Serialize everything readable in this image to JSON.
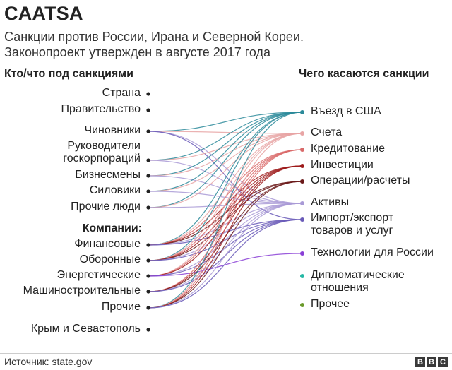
{
  "title": "CAATSA",
  "subtitle": [
    "Санкции против России, Ирана и Северной Кореи.",
    "Законопроект утвержден в августе 2017 года"
  ],
  "left_header": "Кто/что под санкциями",
  "right_header": "Чего касаются санкции",
  "left_nodes": [
    {
      "id": "strana",
      "label": "Страна",
      "color": "#222222"
    },
    {
      "id": "pravitelstvo",
      "label": "Правительство",
      "color": "#222222"
    },
    {
      "id": "chinovniki",
      "label": "Чиновники",
      "color": "#222222"
    },
    {
      "id": "rukovoditeli",
      "label": "Руководители\nгоскорпораций",
      "color": "#222222"
    },
    {
      "id": "biznesmeny",
      "label": "Бизнесмены",
      "color": "#222222"
    },
    {
      "id": "siloviki",
      "label": "Силовики",
      "color": "#222222"
    },
    {
      "id": "prochie_lyudi",
      "label": "Прочие люди",
      "color": "#222222"
    },
    {
      "id": "kompanii",
      "label": "Компании:",
      "color": "#222222"
    },
    {
      "id": "finansovye",
      "label": "Финансовые",
      "color": "#222222"
    },
    {
      "id": "oboronnye",
      "label": "Оборонные",
      "color": "#222222"
    },
    {
      "id": "energeticheskie",
      "label": "Энергетические",
      "color": "#222222"
    },
    {
      "id": "mashinostroitelnye",
      "label": "Машиностроительные",
      "color": "#222222"
    },
    {
      "id": "prochie",
      "label": "Прочие",
      "color": "#222222"
    },
    {
      "id": "krym",
      "label": "Крым и Севастополь",
      "color": "#222222"
    }
  ],
  "right_nodes": [
    {
      "id": "vezd",
      "label": "Въезд в США",
      "color": "#2b8a9a"
    },
    {
      "id": "scheta",
      "label": "Счета",
      "color": "#e8a5a5"
    },
    {
      "id": "kreditovanie",
      "label": "Кредитование",
      "color": "#d96a6a"
    },
    {
      "id": "investicii",
      "label": "Инвестиции",
      "color": "#9e1b1b"
    },
    {
      "id": "operacii",
      "label": "Операции/расчеты",
      "color": "#6b1a1a"
    },
    {
      "id": "aktivy",
      "label": "Активы",
      "color": "#a99ad6"
    },
    {
      "id": "import",
      "label": "Импорт/экспорт\nтоваров и услуг",
      "color": "#6a5bb8"
    },
    {
      "id": "tehnologii",
      "label": "Технологии для России",
      "color": "#8a3fd6"
    },
    {
      "id": "diplomaticheskie",
      "label": "Дипломатические\nотношения",
      "color": "#25b8a5"
    },
    {
      "id": "prochee",
      "label": "Прочее",
      "color": "#6a9a2a"
    }
  ],
  "flows": [
    [
      "chinovniki",
      "vezd"
    ],
    [
      "chinovniki",
      "scheta"
    ],
    [
      "chinovniki",
      "aktivy"
    ],
    [
      "chinovniki",
      "import"
    ],
    [
      "rukovoditeli",
      "vezd"
    ],
    [
      "rukovoditeli",
      "scheta"
    ],
    [
      "rukovoditeli",
      "aktivy"
    ],
    [
      "biznesmeny",
      "vezd"
    ],
    [
      "biznesmeny",
      "scheta"
    ],
    [
      "biznesmeny",
      "aktivy"
    ],
    [
      "siloviki",
      "vezd"
    ],
    [
      "siloviki",
      "scheta"
    ],
    [
      "siloviki",
      "aktivy"
    ],
    [
      "prochie_lyudi",
      "vezd"
    ],
    [
      "prochie_lyudi",
      "scheta"
    ],
    [
      "prochie_lyudi",
      "aktivy"
    ],
    [
      "finansovye",
      "vezd"
    ],
    [
      "finansovye",
      "scheta"
    ],
    [
      "finansovye",
      "kreditovanie"
    ],
    [
      "finansovye",
      "investicii"
    ],
    [
      "finansovye",
      "operacii"
    ],
    [
      "finansovye",
      "aktivy"
    ],
    [
      "finansovye",
      "import"
    ],
    [
      "oboronnye",
      "vezd"
    ],
    [
      "oboronnye",
      "scheta"
    ],
    [
      "oboronnye",
      "kreditovanie"
    ],
    [
      "oboronnye",
      "investicii"
    ],
    [
      "oboronnye",
      "operacii"
    ],
    [
      "oboronnye",
      "aktivy"
    ],
    [
      "oboronnye",
      "import"
    ],
    [
      "energeticheskie",
      "scheta"
    ],
    [
      "energeticheskie",
      "kreditovanie"
    ],
    [
      "energeticheskie",
      "investicii"
    ],
    [
      "energeticheskie",
      "aktivy"
    ],
    [
      "energeticheskie",
      "import"
    ],
    [
      "energeticheskie",
      "tehnologii"
    ],
    [
      "mashinostroitelnye",
      "kreditovanie"
    ],
    [
      "mashinostroitelnye",
      "investicii"
    ],
    [
      "mashinostroitelnye",
      "operacii"
    ],
    [
      "mashinostroitelnye",
      "aktivy"
    ],
    [
      "mashinostroitelnye",
      "import"
    ],
    [
      "prochie",
      "vezd"
    ],
    [
      "prochie",
      "scheta"
    ],
    [
      "prochie",
      "kreditovanie"
    ],
    [
      "prochie",
      "investicii"
    ],
    [
      "prochie",
      "operacii"
    ],
    [
      "prochie",
      "aktivy"
    ],
    [
      "prochie",
      "import"
    ]
  ],
  "source": "Источник: state.gov",
  "logo": [
    "B",
    "B",
    "C"
  ]
}
